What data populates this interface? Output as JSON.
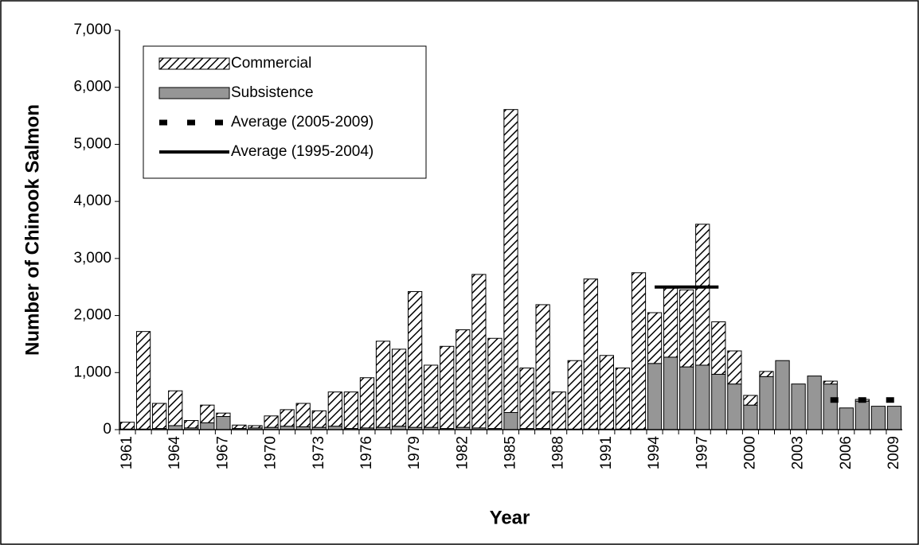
{
  "chart_data": {
    "type": "bar",
    "stacked": true,
    "xlabel": "Year",
    "ylabel": "Number of Chinook Salmon",
    "categories": [
      "1961",
      null,
      null,
      "1964",
      null,
      null,
      "1967",
      null,
      null,
      "1970",
      null,
      null,
      "1973",
      null,
      null,
      "1976",
      null,
      null,
      "1979",
      null,
      null,
      "1982",
      null,
      null,
      "1985",
      null,
      null,
      "1988",
      null,
      null,
      "1991",
      null,
      null,
      "1994",
      null,
      null,
      "1997",
      null,
      null,
      "2000",
      null,
      null,
      "2003",
      null,
      null,
      "2006",
      null,
      null,
      "2009"
    ],
    "series": [
      {
        "name": "Subsistence",
        "color": "#969696",
        "values": [
          10,
          10,
          20,
          70,
          30,
          120,
          230,
          20,
          30,
          40,
          60,
          50,
          40,
          60,
          20,
          30,
          40,
          60,
          40,
          40,
          20,
          40,
          30,
          20,
          300,
          20,
          20,
          10,
          10,
          10,
          10,
          10,
          10,
          1160,
          1270,
          1100,
          1130,
          970,
          800,
          430,
          930,
          1210,
          800,
          940,
          800,
          380,
          500,
          410,
          410
        ]
      },
      {
        "name": "Commercial",
        "color": "#000000",
        "hatch": true,
        "values": [
          120,
          1710,
          440,
          610,
          130,
          310,
          60,
          60,
          40,
          200,
          290,
          410,
          290,
          600,
          640,
          880,
          1510,
          1350,
          2380,
          1090,
          1440,
          1710,
          2690,
          1580,
          5310,
          1060,
          2170,
          650,
          1200,
          2630,
          1290,
          1070,
          2740,
          890,
          1210,
          1350,
          2470,
          920,
          580,
          170,
          90,
          0,
          0,
          0,
          50,
          0,
          30,
          0,
          0
        ]
      },
      {
        "name": "Average (2005-2009)",
        "type": "line",
        "color": "#000000",
        "dashed": true,
        "values": [
          null,
          null,
          null,
          null,
          null,
          null,
          null,
          null,
          null,
          null,
          null,
          null,
          null,
          null,
          null,
          null,
          null,
          null,
          null,
          null,
          null,
          null,
          null,
          null,
          null,
          null,
          null,
          null,
          null,
          null,
          null,
          null,
          null,
          null,
          null,
          null,
          null,
          null,
          null,
          null,
          null,
          null,
          null,
          null,
          520,
          520,
          520,
          520,
          520
        ]
      },
      {
        "name": "Average (1995-2004)",
        "type": "line",
        "color": "#000000",
        "dashed": false,
        "values": [
          null,
          null,
          null,
          null,
          null,
          null,
          null,
          null,
          null,
          null,
          null,
          null,
          null,
          null,
          null,
          null,
          null,
          null,
          null,
          null,
          null,
          null,
          null,
          null,
          null,
          null,
          null,
          null,
          null,
          null,
          null,
          null,
          null,
          2500,
          2500,
          2500,
          2500,
          2500,
          null,
          null,
          null,
          null,
          null,
          null,
          null,
          null,
          null,
          null,
          null
        ]
      }
    ],
    "legend_order": [
      1,
      0,
      2,
      3
    ],
    "legend": "upper left",
    "ylim": [
      0,
      7000
    ],
    "yticks": [
      0,
      {
        "value": 1000,
        "label": "1,000"
      },
      {
        "value": 2000,
        "label": "2,000"
      },
      {
        "value": 3000,
        "label": "3,000"
      },
      {
        "value": 4000,
        "label": "4,000"
      },
      {
        "value": 5000,
        "label": "5,000"
      },
      {
        "value": 6000,
        "label": "6,000"
      },
      {
        "value": 7000,
        "label": "7,000"
      }
    ],
    "grid": false
  }
}
